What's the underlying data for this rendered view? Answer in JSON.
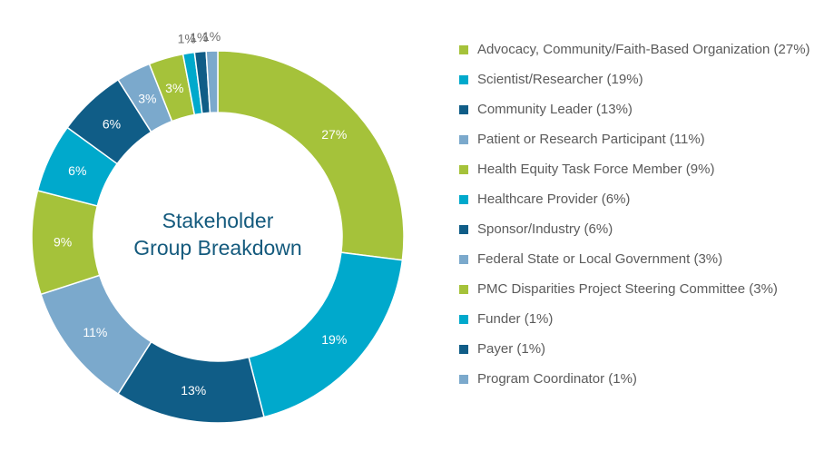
{
  "chart_data": {
    "type": "pie",
    "title": "Stakeholder Group Breakdown",
    "title_lines": [
      "Stakeholder",
      "Group Breakdown"
    ],
    "slices": [
      {
        "legend": "Advocacy, Community/Faith-Based Organization (27%)",
        "value": 27,
        "label": "27%",
        "color": "#a5c23a"
      },
      {
        "legend": "Scientist/Researcher (19%)",
        "value": 19,
        "label": "19%",
        "color": "#00a9cc"
      },
      {
        "legend": "Community Leader (13%)",
        "value": 13,
        "label": "13%",
        "color": "#105d87"
      },
      {
        "legend": "Patient or Research Participant (11%)",
        "value": 11,
        "label": "11%",
        "color": "#7ba9cc"
      },
      {
        "legend": "Health Equity Task Force Member (9%)",
        "value": 9,
        "label": "9%",
        "color": "#a5c23a"
      },
      {
        "legend": "Healthcare Provider (6%)",
        "value": 6,
        "label": "6%",
        "color": "#00a9cc"
      },
      {
        "legend": "Sponsor/Industry (6%)",
        "value": 6,
        "label": "6%",
        "color": "#105d87"
      },
      {
        "legend": "Federal State or Local Government (3%)",
        "value": 3,
        "label": "3%",
        "color": "#7ba9cc"
      },
      {
        "legend": "PMC Disparities Project Steering Committee (3%)",
        "value": 3,
        "label": "3%",
        "color": "#a5c23a"
      },
      {
        "legend": "Funder (1%)",
        "value": 1,
        "label": "1%",
        "color": "#00a9cc"
      },
      {
        "legend": "Payer (1%)",
        "value": 1,
        "label": "1%",
        "color": "#105d87"
      },
      {
        "legend": "Program Coordinator (1%)",
        "value": 1,
        "label": "1%",
        "color": "#7ba9cc"
      }
    ],
    "legend_placement": "right"
  }
}
